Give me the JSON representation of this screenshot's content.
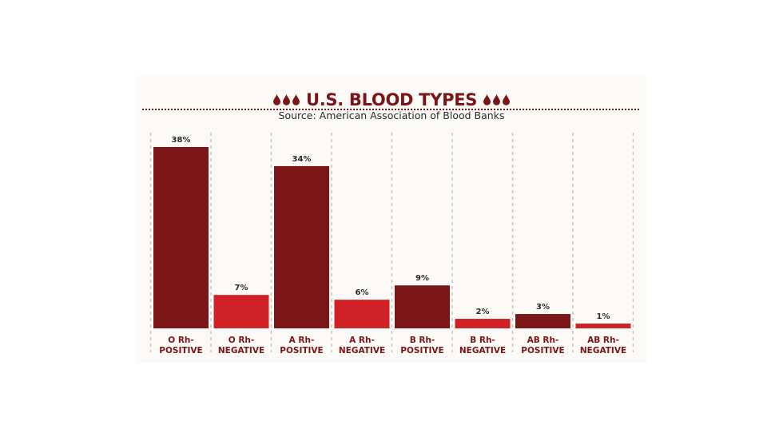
{
  "colors": {
    "positive": "#7a1518",
    "negative": "#cf2227",
    "title": "#7a1518",
    "divider": "#c9c4be"
  },
  "header": {
    "title": "U.S. BLOOD TYPES",
    "subtitle": "Source: American Association of Blood Banks",
    "drop_icon": "blood-drop-icon"
  },
  "chart_data": {
    "type": "bar",
    "title": "U.S. BLOOD TYPES",
    "subtitle": "Source: American Association of Blood Banks",
    "categories": [
      [
        "O Rh-",
        "POSITIVE"
      ],
      [
        "O Rh-",
        "NEGATIVE"
      ],
      [
        "A Rh-",
        "POSITIVE"
      ],
      [
        "A Rh-",
        "NEGATIVE"
      ],
      [
        "B Rh-",
        "POSITIVE"
      ],
      [
        "B Rh-",
        "NEGATIVE"
      ],
      [
        "AB Rh-",
        "POSITIVE"
      ],
      [
        "AB Rh-",
        "NEGATIVE"
      ]
    ],
    "values": [
      38,
      7,
      34,
      6,
      9,
      2,
      3,
      1
    ],
    "value_labels": [
      "38%",
      "7%",
      "34%",
      "6%",
      "9%",
      "2%",
      "3%",
      "1%"
    ],
    "bar_colors": [
      "positive",
      "negative",
      "positive",
      "negative",
      "positive",
      "negative",
      "positive",
      "negative"
    ],
    "unit": "%",
    "ylim": [
      0,
      38
    ],
    "xlabel": "",
    "ylabel": "",
    "grid": false,
    "legend": "none"
  }
}
